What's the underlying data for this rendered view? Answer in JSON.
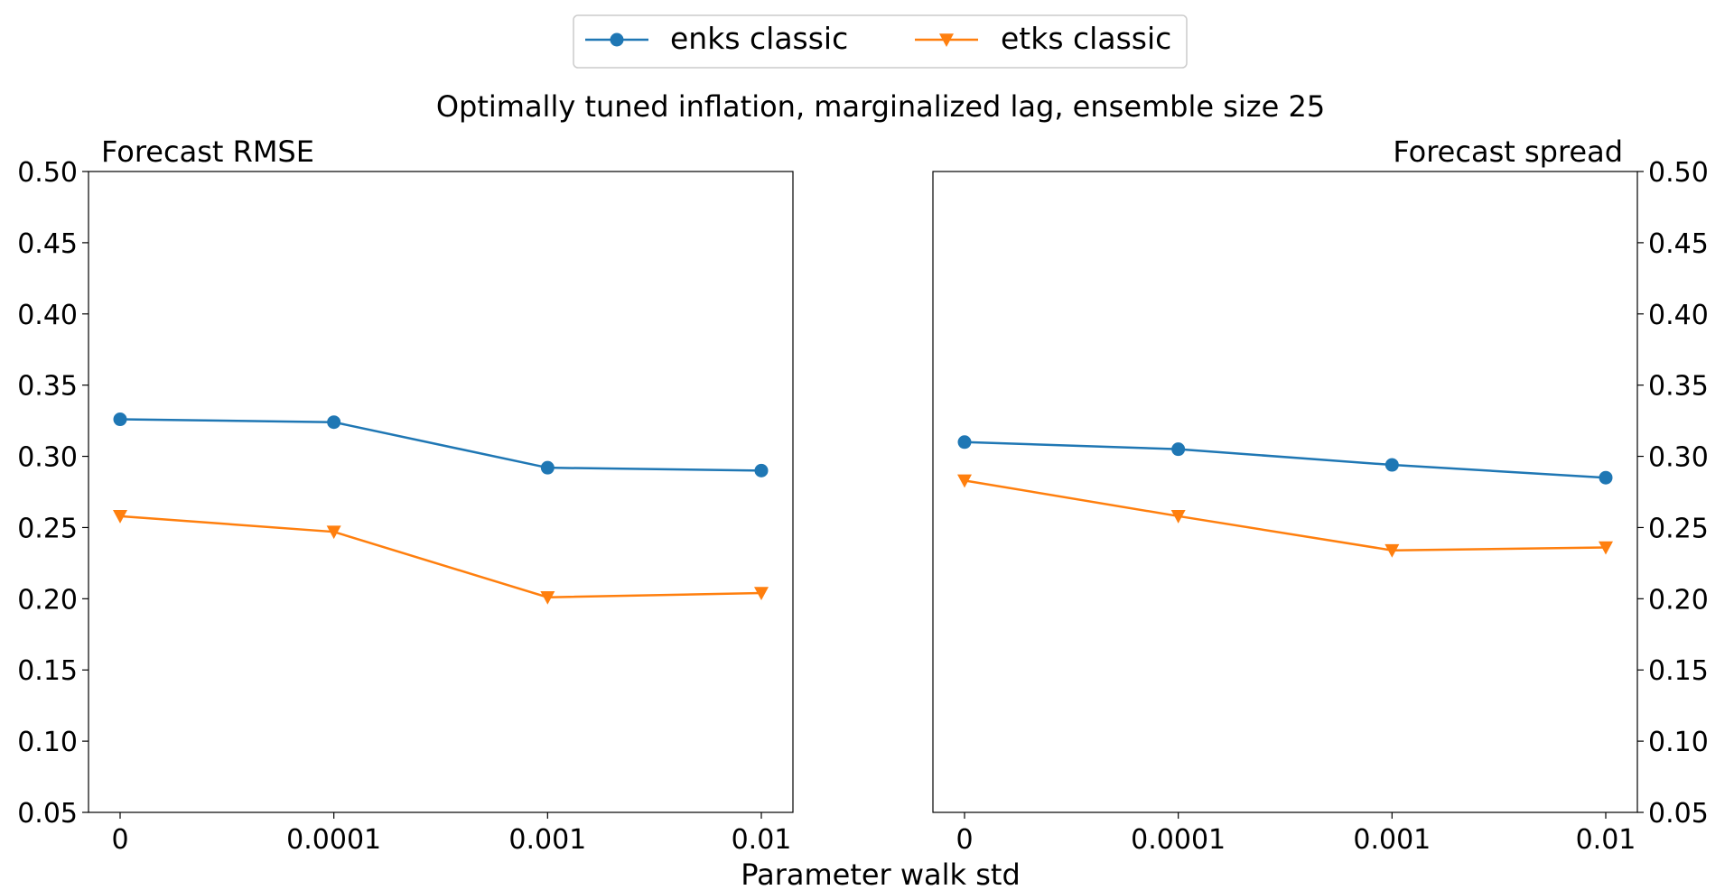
{
  "figure": {
    "suptitle": "Optimally tuned inflation, marginalized lag, ensemble size 25",
    "xlabel": "Parameter walk std"
  },
  "legend": {
    "position": "upper-center",
    "entries": [
      {
        "label": "enks classic",
        "color": "#1f77b4",
        "marker": "circle"
      },
      {
        "label": "etks classic",
        "color": "#ff7f0e",
        "marker": "triangle-down"
      }
    ]
  },
  "chart_data": [
    {
      "type": "line",
      "title": "Forecast RMSE",
      "title_align": "left",
      "yaxis_side": "left",
      "categories": [
        "0",
        "0.0001",
        "0.001",
        "0.01"
      ],
      "ylim": [
        0.05,
        0.5
      ],
      "yticks": [
        "0.05",
        "0.10",
        "0.15",
        "0.20",
        "0.25",
        "0.30",
        "0.35",
        "0.40",
        "0.45",
        "0.50"
      ],
      "grid": false,
      "series": [
        {
          "name": "enks classic",
          "color": "#1f77b4",
          "marker": "circle",
          "values": [
            0.326,
            0.324,
            0.292,
            0.29
          ]
        },
        {
          "name": "etks classic",
          "color": "#ff7f0e",
          "marker": "triangle-down",
          "values": [
            0.258,
            0.247,
            0.201,
            0.204
          ]
        }
      ]
    },
    {
      "type": "line",
      "title": "Forecast spread",
      "title_align": "right",
      "yaxis_side": "right",
      "categories": [
        "0",
        "0.0001",
        "0.001",
        "0.01"
      ],
      "ylim": [
        0.05,
        0.5
      ],
      "yticks": [
        "0.05",
        "0.10",
        "0.15",
        "0.20",
        "0.25",
        "0.30",
        "0.35",
        "0.40",
        "0.45",
        "0.50"
      ],
      "grid": false,
      "series": [
        {
          "name": "enks classic",
          "color": "#1f77b4",
          "marker": "circle",
          "values": [
            0.31,
            0.305,
            0.294,
            0.285
          ]
        },
        {
          "name": "etks classic",
          "color": "#ff7f0e",
          "marker": "triangle-down",
          "values": [
            0.283,
            0.258,
            0.234,
            0.236
          ]
        }
      ]
    }
  ]
}
